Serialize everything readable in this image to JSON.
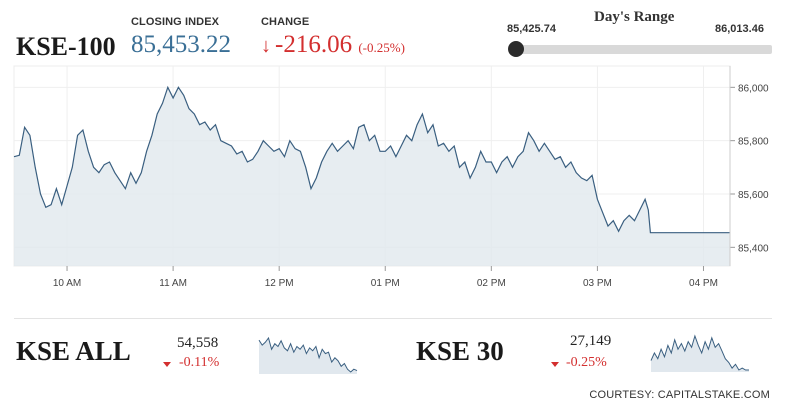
{
  "header": {
    "ticker": "KSE-100",
    "closing_label": "CLOSING INDEX",
    "closing_value": "85,453.22",
    "change_label": "CHANGE",
    "change_arrow": "↓",
    "change_value": "-216.06",
    "change_pct": "(-0.25%)"
  },
  "days_range": {
    "title": "Day's Range",
    "low": "85,425.74",
    "high": "86,013.46",
    "position_fraction": 0.0
  },
  "chart_data": {
    "type": "area",
    "ylim": [
      85330,
      86080
    ],
    "y_ticks": [
      85400,
      85600,
      85800,
      86000
    ],
    "y_tick_labels": [
      "85,400",
      "85,600",
      "85,800",
      "86,000"
    ],
    "x_tick_labels": [
      "10 AM",
      "11 AM",
      "12 PM",
      "01 PM",
      "02 PM",
      "03 PM",
      "04 PM"
    ],
    "x_tick_hours": [
      10,
      11,
      12,
      13,
      14,
      15,
      16
    ],
    "xlim": [
      9.5,
      16.25
    ],
    "series": [
      {
        "points": [
          [
            9.5,
            85740
          ],
          [
            9.55,
            85745
          ],
          [
            9.6,
            85850
          ],
          [
            9.65,
            85820
          ],
          [
            9.7,
            85700
          ],
          [
            9.75,
            85600
          ],
          [
            9.8,
            85550
          ],
          [
            9.85,
            85560
          ],
          [
            9.9,
            85620
          ],
          [
            9.95,
            85560
          ],
          [
            10.0,
            85630
          ],
          [
            10.05,
            85700
          ],
          [
            10.1,
            85820
          ],
          [
            10.15,
            85840
          ],
          [
            10.2,
            85760
          ],
          [
            10.25,
            85700
          ],
          [
            10.3,
            85680
          ],
          [
            10.35,
            85710
          ],
          [
            10.4,
            85720
          ],
          [
            10.45,
            85680
          ],
          [
            10.5,
            85650
          ],
          [
            10.55,
            85620
          ],
          [
            10.6,
            85680
          ],
          [
            10.65,
            85640
          ],
          [
            10.7,
            85680
          ],
          [
            10.75,
            85760
          ],
          [
            10.8,
            85820
          ],
          [
            10.85,
            85900
          ],
          [
            10.9,
            85940
          ],
          [
            10.95,
            86000
          ],
          [
            11.0,
            85960
          ],
          [
            11.05,
            86000
          ],
          [
            11.1,
            85970
          ],
          [
            11.15,
            85920
          ],
          [
            11.2,
            85900
          ],
          [
            11.25,
            85860
          ],
          [
            11.3,
            85870
          ],
          [
            11.35,
            85840
          ],
          [
            11.4,
            85860
          ],
          [
            11.45,
            85800
          ],
          [
            11.5,
            85790
          ],
          [
            11.55,
            85780
          ],
          [
            11.6,
            85750
          ],
          [
            11.65,
            85760
          ],
          [
            11.7,
            85720
          ],
          [
            11.75,
            85730
          ],
          [
            11.8,
            85760
          ],
          [
            11.85,
            85800
          ],
          [
            11.9,
            85780
          ],
          [
            11.95,
            85760
          ],
          [
            12.0,
            85770
          ],
          [
            12.05,
            85740
          ],
          [
            12.1,
            85800
          ],
          [
            12.15,
            85770
          ],
          [
            12.2,
            85760
          ],
          [
            12.25,
            85700
          ],
          [
            12.3,
            85620
          ],
          [
            12.35,
            85660
          ],
          [
            12.4,
            85720
          ],
          [
            12.45,
            85760
          ],
          [
            12.5,
            85790
          ],
          [
            12.55,
            85760
          ],
          [
            12.6,
            85780
          ],
          [
            12.65,
            85800
          ],
          [
            12.7,
            85770
          ],
          [
            12.75,
            85850
          ],
          [
            12.8,
            85860
          ],
          [
            12.85,
            85800
          ],
          [
            12.9,
            85820
          ],
          [
            12.95,
            85760
          ],
          [
            13.0,
            85760
          ],
          [
            13.05,
            85780
          ],
          [
            13.1,
            85740
          ],
          [
            13.15,
            85780
          ],
          [
            13.2,
            85820
          ],
          [
            13.25,
            85800
          ],
          [
            13.3,
            85860
          ],
          [
            13.35,
            85900
          ],
          [
            13.4,
            85830
          ],
          [
            13.45,
            85860
          ],
          [
            13.5,
            85780
          ],
          [
            13.55,
            85790
          ],
          [
            13.6,
            85760
          ],
          [
            13.65,
            85780
          ],
          [
            13.7,
            85700
          ],
          [
            13.75,
            85720
          ],
          [
            13.8,
            85660
          ],
          [
            13.85,
            85700
          ],
          [
            13.9,
            85760
          ],
          [
            13.95,
            85720
          ],
          [
            14.0,
            85720
          ],
          [
            14.05,
            85680
          ],
          [
            14.1,
            85720
          ],
          [
            14.15,
            85740
          ],
          [
            14.2,
            85700
          ],
          [
            14.25,
            85740
          ],
          [
            14.3,
            85760
          ],
          [
            14.35,
            85830
          ],
          [
            14.4,
            85800
          ],
          [
            14.45,
            85760
          ],
          [
            14.5,
            85790
          ],
          [
            14.55,
            85760
          ],
          [
            14.6,
            85730
          ],
          [
            14.65,
            85740
          ],
          [
            14.7,
            85700
          ],
          [
            14.75,
            85720
          ],
          [
            14.8,
            85680
          ],
          [
            14.85,
            85660
          ],
          [
            14.9,
            85650
          ],
          [
            14.95,
            85670
          ],
          [
            15.0,
            85580
          ],
          [
            15.05,
            85530
          ],
          [
            15.1,
            85480
          ],
          [
            15.15,
            85500
          ],
          [
            15.2,
            85460
          ],
          [
            15.25,
            85500
          ],
          [
            15.3,
            85520
          ],
          [
            15.35,
            85500
          ],
          [
            15.4,
            85540
          ],
          [
            15.45,
            85580
          ],
          [
            15.48,
            85540
          ],
          [
            15.5,
            85455
          ],
          [
            16.25,
            85455
          ]
        ]
      }
    ]
  },
  "mini_all": {
    "name": "KSE ALL",
    "value": "54,558",
    "pct": "-0.11%",
    "values": [
      55,
      48,
      52,
      58,
      42,
      50,
      46,
      54,
      44,
      40,
      50,
      38,
      46,
      42,
      48,
      36,
      44,
      40,
      46,
      30,
      42,
      36,
      38,
      24,
      30,
      26,
      18,
      22,
      14,
      10,
      14,
      12
    ]
  },
  "mini_30": {
    "name": "KSE 30",
    "value": "27,149",
    "pct": "-0.25%",
    "values": [
      28,
      36,
      30,
      40,
      32,
      44,
      36,
      50,
      40,
      46,
      38,
      48,
      42,
      54,
      44,
      36,
      48,
      40,
      52,
      42,
      46,
      38,
      30,
      26,
      20,
      24,
      18,
      20,
      18,
      18
    ]
  },
  "courtesy": "COURTESY: CAPITALSTAKE.COM",
  "colors": {
    "line": "#3a5f80",
    "fill": "#e1e8ee",
    "red": "#d32f2f",
    "blue": "#3a6f96"
  },
  "icons": {
    "down_arrow": "down-arrow-icon",
    "range_knob": "range-knob"
  }
}
